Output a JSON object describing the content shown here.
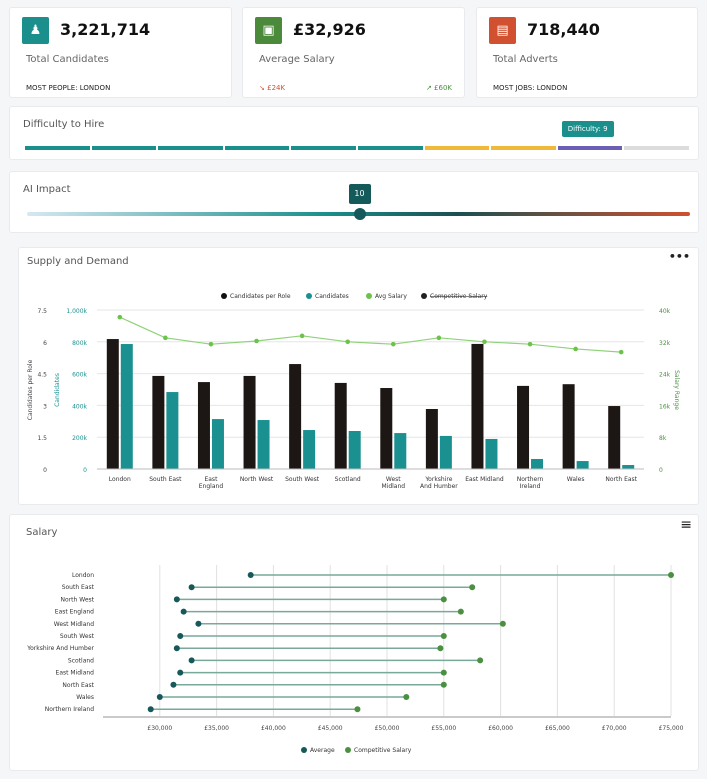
{
  "cards": [
    {
      "value": "3,221,714",
      "label": "Total Candidates",
      "footer": "MOST PEOPLE:  LONDON",
      "icon": "people-icon",
      "color": "#1a8f8c"
    },
    {
      "value": "£32,926",
      "label": "Average Salary",
      "low": "£24K",
      "high": "£60K",
      "icon": "money-icon",
      "color": "#4a8a3a"
    },
    {
      "value": "718,440",
      "label": "Total Adverts",
      "footer": "MOST JOBS:  LONDON",
      "icon": "newspaper-icon",
      "color": "#d0502f"
    }
  ],
  "difficulty": {
    "title": "Difficulty to Hire",
    "value": 9,
    "max": 10,
    "tooltip": "Difficulty: 9",
    "colors": [
      "#1a8f8c",
      "#1a8f8c",
      "#1a8f8c",
      "#1a8f8c",
      "#1a8f8c",
      "#1a8f8c",
      "#f0b93a",
      "#f0b93a",
      "#6a5fb5",
      "#dcdcdc"
    ]
  },
  "ai": {
    "title": "AI Impact",
    "value": 10,
    "label": "10",
    "max": 20
  },
  "supply": {
    "title": "Supply and Demand",
    "menu": "•••",
    "chart_data": {
      "type": "bar",
      "categories": [
        "London",
        "South East",
        "East England",
        "North West",
        "South West",
        "Scotland",
        "West Midland",
        "Yorkshire And Humber",
        "East Midland",
        "Northern Ireland",
        "Wales",
        "North East"
      ],
      "legend": [
        "Candidates per Role",
        "Candidates",
        "Avg Salary",
        "Competitive Salary"
      ],
      "series": [
        {
          "name": "Candidates per Role",
          "axis": "left",
          "color": "#1c1614",
          "values": [
            6.13,
            4.39,
            4.1,
            4.39,
            4.95,
            4.06,
            3.82,
            2.83,
            5.9,
            3.92,
            4.0,
            2.97
          ]
        },
        {
          "name": "Candidates",
          "axis": "left2",
          "color": "#1a9090",
          "values": [
            786000,
            484000,
            314000,
            308000,
            245000,
            239000,
            226000,
            208000,
            189000,
            63000,
            50000,
            25000
          ]
        },
        {
          "name": "Avg Salary",
          "type": "line",
          "axis": "right",
          "color": "#6cc24a",
          "values": [
            38200,
            33000,
            31400,
            32200,
            33500,
            32000,
            31400,
            33000,
            32000,
            31400,
            30200,
            29400
          ]
        }
      ],
      "hidden_series": [
        "Competitive Salary"
      ],
      "axes": {
        "left": {
          "label": "Candidates per Role",
          "ticks": [
            "0",
            "1.5",
            "3",
            "4.5",
            "6",
            "7.5"
          ],
          "range": [
            0,
            7.5
          ]
        },
        "left2": {
          "label": "Candidates",
          "ticks": [
            "0",
            "200k",
            "400k",
            "600k",
            "800k",
            "1,000k"
          ],
          "range": [
            0,
            1000000
          ]
        },
        "right": {
          "label": "Salary Range",
          "ticks": [
            "0",
            "8k",
            "16k",
            "24k",
            "32k",
            "40k"
          ],
          "range": [
            0,
            40000
          ]
        }
      },
      "xlabels": [
        [
          "London"
        ],
        [
          "South East"
        ],
        [
          "East",
          "England"
        ],
        [
          "North West"
        ],
        [
          "South West"
        ],
        [
          "Scotland"
        ],
        [
          "West",
          "Midland"
        ],
        [
          "Yorkshire",
          "And Humber"
        ],
        [
          "East Midland"
        ],
        [
          "Northern",
          "Ireland"
        ],
        [
          "Wales"
        ],
        [
          "North East"
        ]
      ],
      "grid": true,
      "legend_position": "top"
    }
  },
  "salary": {
    "title": "Salary",
    "menu": "≡",
    "chart_data": {
      "type": "dumbbell",
      "categories": [
        "London",
        "South East",
        "North West",
        "East England",
        "West Midland",
        "South West",
        "Yorkshire And Humber",
        "Scotland",
        "East Midland",
        "North East",
        "Wales",
        "Northern Ireland"
      ],
      "series": [
        {
          "name": "Average",
          "color": "#17585a",
          "values": [
            38000,
            32800,
            31500,
            32100,
            33400,
            31800,
            31500,
            32800,
            31800,
            31200,
            30000,
            29200
          ]
        },
        {
          "name": "Competitive Salary",
          "color": "#4a9040",
          "values": [
            75000,
            57500,
            55000,
            56500,
            60200,
            55000,
            54700,
            58200,
            55000,
            55000,
            51700,
            47400
          ]
        }
      ],
      "xlim": [
        25000,
        75000
      ],
      "ticks": [
        "£30,000",
        "£35,000",
        "£40,000",
        "£45,000",
        "£50,000",
        "£55,000",
        "£60,000",
        "£65,000",
        "£70,000",
        "£75,000"
      ],
      "grid": true,
      "legend_position": "bottom"
    }
  }
}
